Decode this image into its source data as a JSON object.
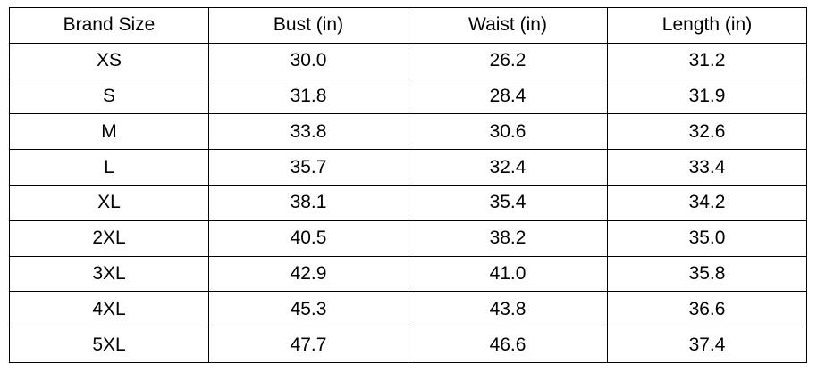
{
  "table": {
    "header": [
      "Brand Size",
      "Bust (in)",
      "Waist (in)",
      "Length (in)"
    ],
    "rows": [
      [
        "XS",
        "30.0",
        "26.2",
        "31.2"
      ],
      [
        "S",
        "31.8",
        "28.4",
        "31.9"
      ],
      [
        "M",
        "33.8",
        "30.6",
        "32.6"
      ],
      [
        "L",
        "35.7",
        "32.4",
        "33.4"
      ],
      [
        "XL",
        "38.1",
        "35.4",
        "34.2"
      ],
      [
        "2XL",
        "40.5",
        "38.2",
        "35.0"
      ],
      [
        "3XL",
        "42.9",
        "41.0",
        "35.8"
      ],
      [
        "4XL",
        "45.3",
        "43.8",
        "36.6"
      ],
      [
        "5XL",
        "47.7",
        "46.6",
        "37.4"
      ]
    ]
  }
}
